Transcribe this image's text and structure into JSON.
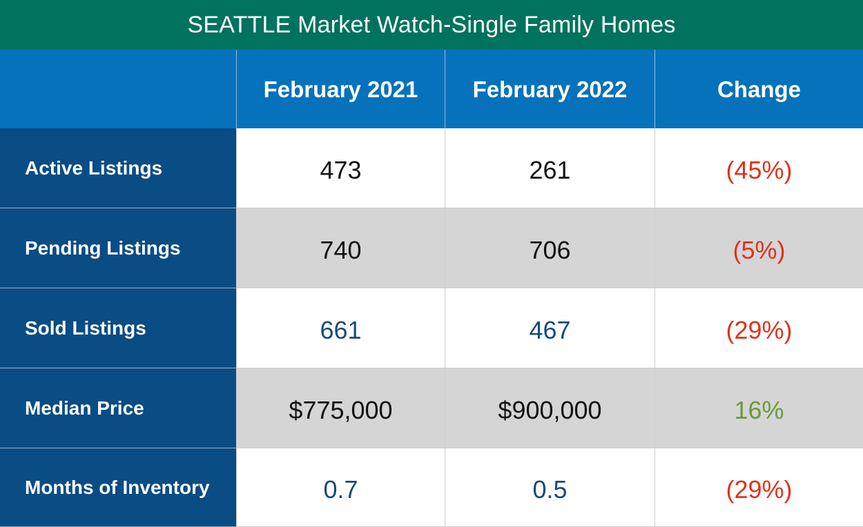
{
  "title": "SEATTLE Market Watch-Single Family Homes",
  "headers": [
    "",
    "February 2021",
    "February 2022",
    "Change"
  ],
  "rows": [
    {
      "label": "Active Listings",
      "values": [
        "473",
        "261"
      ],
      "change": "(45%)",
      "value_color": "#111111",
      "change_color": "#e0321c",
      "shaded": false
    },
    {
      "label": "Pending Listings",
      "values": [
        "740",
        "706"
      ],
      "change": "(5%)",
      "value_color": "#111111",
      "change_color": "#e0321c",
      "shaded": true
    },
    {
      "label": "Sold Listings",
      "values": [
        "661",
        "467"
      ],
      "change": "(29%)",
      "value_color": "#1a4a7a",
      "change_color": "#e0321c",
      "shaded": false
    },
    {
      "label": "Median Price",
      "values": [
        "$775,000",
        "$900,000"
      ],
      "change": "16%",
      "value_color": "#111111",
      "change_color": "#6a9a3a",
      "shaded": true
    },
    {
      "label": "Months of Inventory",
      "values": [
        "0.7",
        "0.5"
      ],
      "change": "(29%)",
      "value_color": "#1a4a7a",
      "change_color": "#e0321c",
      "shaded": false
    }
  ],
  "colors": {
    "title_bar": "#00725e",
    "header_row": "#0572bb",
    "label_column": "#0a4c84",
    "shaded_row": "#d5d5d5",
    "unshaded_row": "#ffffff"
  }
}
